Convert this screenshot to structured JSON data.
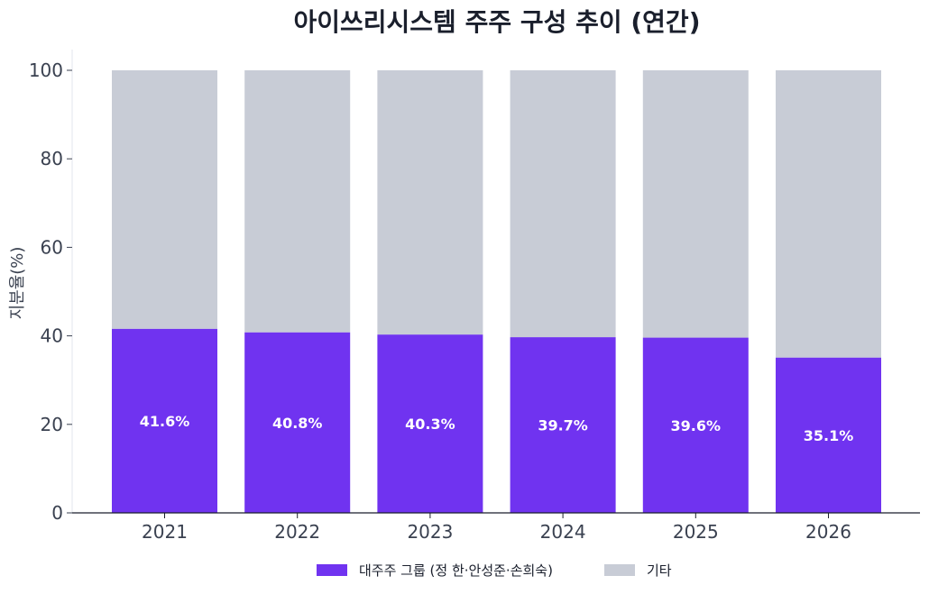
{
  "chart_data": {
    "type": "bar",
    "stacked": true,
    "title": "아이쓰리시스템 주주 구성 추이 (연간)",
    "xlabel": "",
    "ylabel": "지분율(%)",
    "ylim": [
      0,
      100
    ],
    "yticks": [
      0,
      20,
      40,
      60,
      80,
      100
    ],
    "categories": [
      "2021",
      "2022",
      "2023",
      "2024",
      "2025",
      "2026"
    ],
    "series": [
      {
        "name": "대주주 그룹 (정 한·안성준·손희숙)",
        "color": "#7033f0",
        "values": [
          41.6,
          40.8,
          40.3,
          39.7,
          39.6,
          35.1
        ],
        "labels": [
          "41.6%",
          "40.8%",
          "40.3%",
          "39.7%",
          "39.6%",
          "35.1%"
        ]
      },
      {
        "name": "기타",
        "color": "#c8ccd6",
        "values": [
          58.4,
          59.2,
          59.7,
          60.3,
          60.4,
          64.9
        ]
      }
    ],
    "legend_position": "bottom-center",
    "grid": false
  }
}
